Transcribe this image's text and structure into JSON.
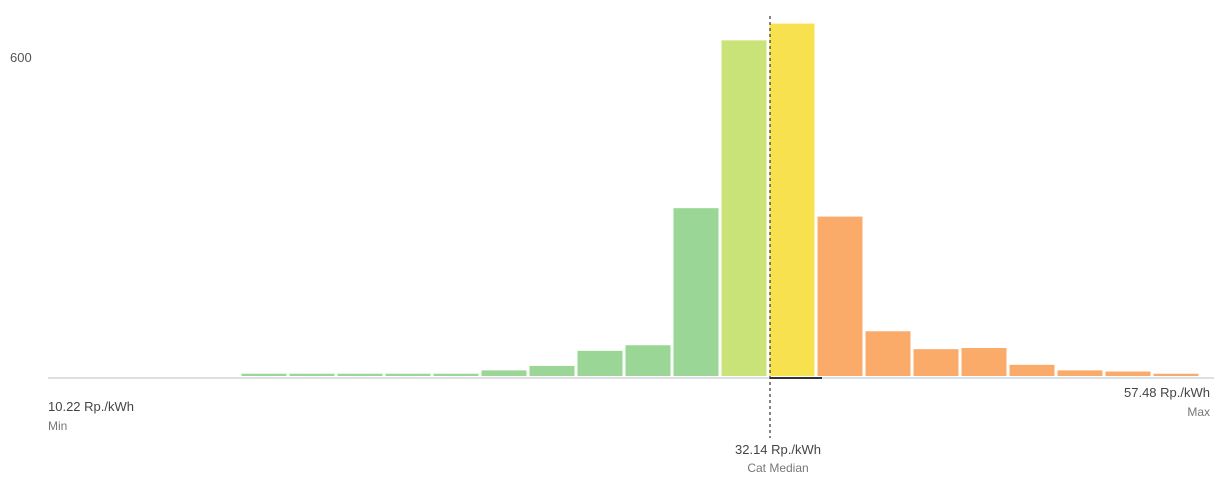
{
  "chart_data": {
    "type": "bar",
    "title": "",
    "ylabel": "",
    "yticks": [
      600
    ],
    "ylim": [
      0,
      640
    ],
    "xlim": [
      10.22,
      57.48
    ],
    "bins": [
      {
        "value": 4,
        "color": "#8fd18a"
      },
      {
        "value": 4,
        "color": "#8fd18a"
      },
      {
        "value": 4,
        "color": "#8fd18a"
      },
      {
        "value": 4,
        "color": "#8fd18a"
      },
      {
        "value": 4,
        "color": "#8fd18a"
      },
      {
        "value": 10,
        "color": "#8fd18a"
      },
      {
        "value": 18,
        "color": "#8fd18a"
      },
      {
        "value": 45,
        "color": "#8fd18a"
      },
      {
        "value": 55,
        "color": "#8fd18a"
      },
      {
        "value": 300,
        "color": "#8fd18a"
      },
      {
        "value": 600,
        "color": "#c3e06a"
      },
      {
        "value": 630,
        "color": "#f7de3b"
      },
      {
        "value": 285,
        "color": "#f9a25a"
      },
      {
        "value": 80,
        "color": "#f9a25a"
      },
      {
        "value": 48,
        "color": "#f9a25a"
      },
      {
        "value": 50,
        "color": "#f9a25a"
      },
      {
        "value": 20,
        "color": "#f9a25a"
      },
      {
        "value": 10,
        "color": "#f9a25a"
      },
      {
        "value": 8,
        "color": "#f9a25a"
      },
      {
        "value": 4,
        "color": "#f9a25a"
      }
    ],
    "min_value": 10.22,
    "max_value": 57.48,
    "marker_value": 32.14,
    "min_label": "10.22 Rp./kWh",
    "min_sub": "Min",
    "max_label": "57.48 Rp./kWh",
    "max_sub": "Max",
    "marker_label": "32.14 Rp./kWh",
    "marker_sub": "Cat Median"
  }
}
